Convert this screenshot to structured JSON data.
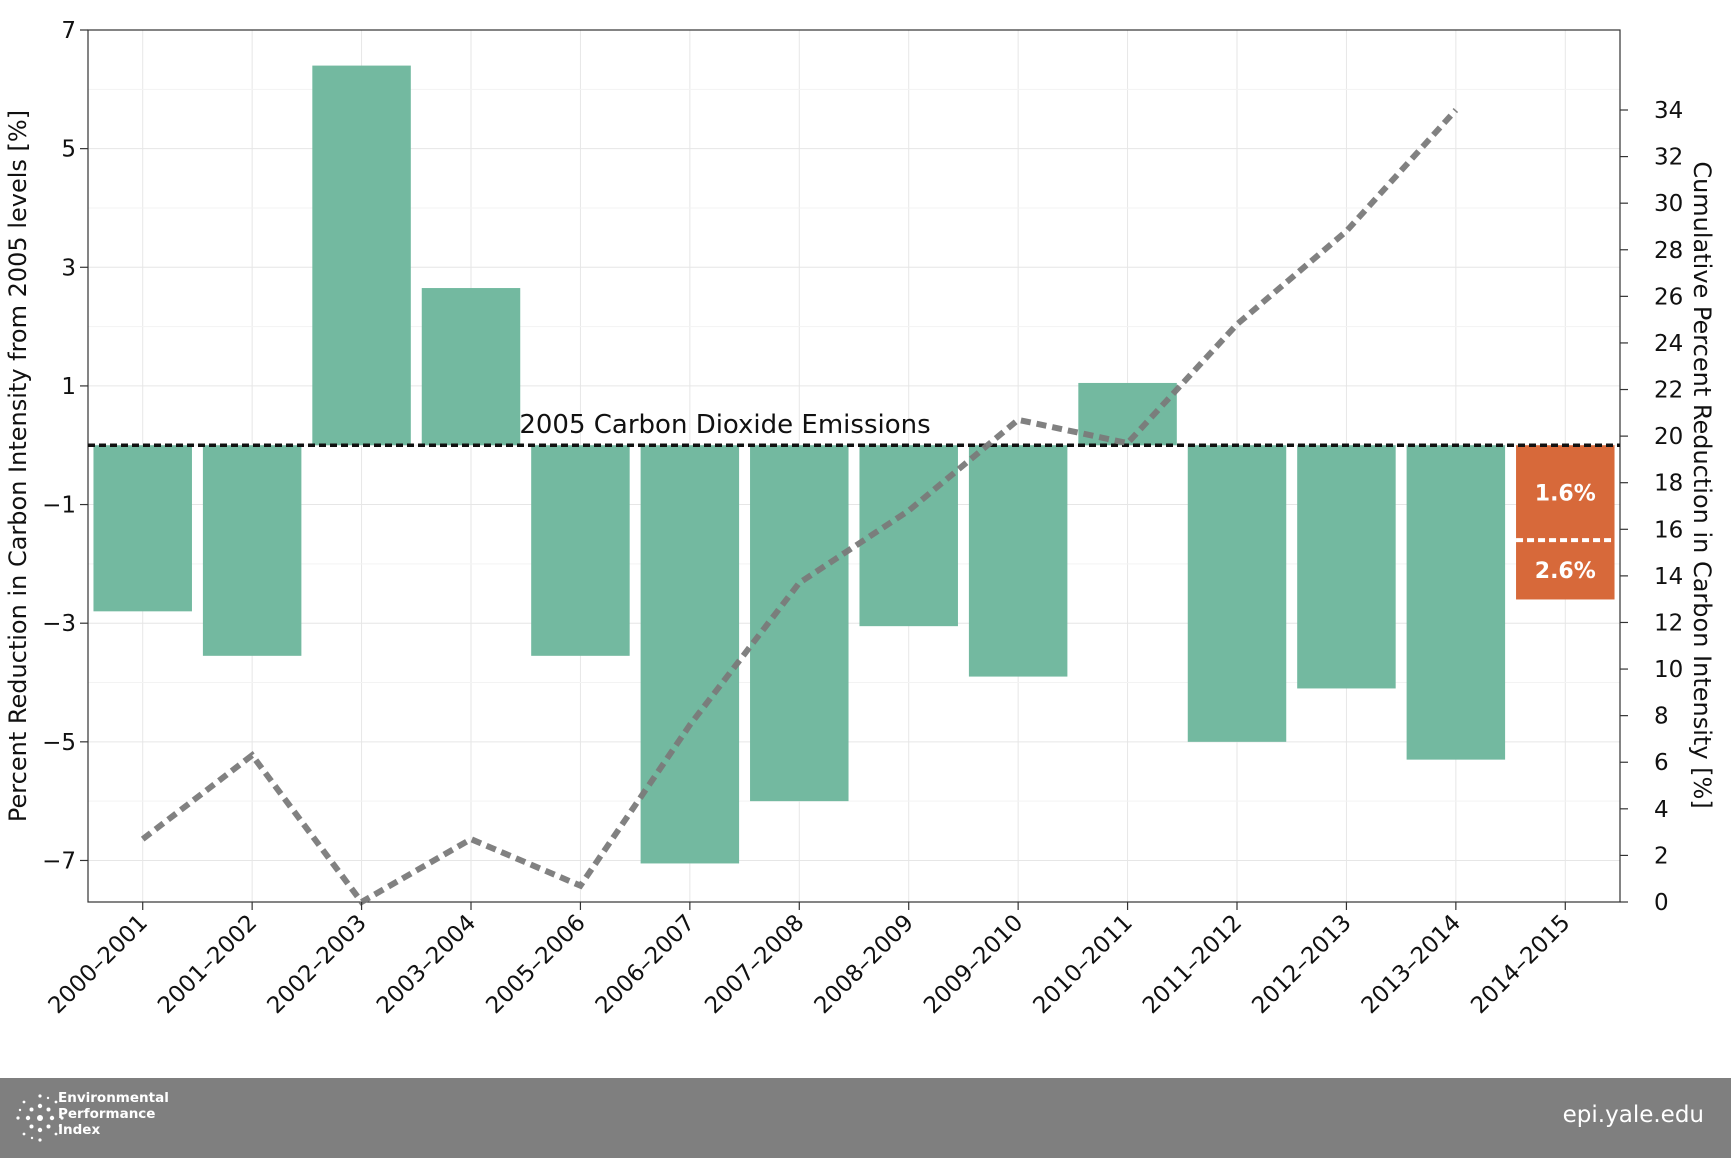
{
  "chart_data": {
    "type": "bar",
    "categories": [
      "2000–2001",
      "2001–2002",
      "2002–2003",
      "2003–2004",
      "2005–2006",
      "2006–2007",
      "2007–2008",
      "2008–2009",
      "2009–2010",
      "2010–2011",
      "2011–2012",
      "2012–2013",
      "2013–2014",
      "2014–2015"
    ],
    "series": [
      {
        "values": [
          -2.8,
          -3.55,
          6.4,
          2.65,
          -3.55,
          -7.05,
          -6.0,
          -3.05,
          -3.9,
          1.05,
          -5.0,
          -4.1,
          -5.3,
          null
        ],
        "color": "#73b9a0"
      },
      {
        "values": [
          2.7,
          6.3,
          0.0,
          2.7,
          0.7,
          7.6,
          13.7,
          16.8,
          20.7,
          19.7,
          24.8,
          28.8,
          34.0,
          null
        ],
        "color": "#7a7a7a",
        "line": "dashed",
        "axis": "right"
      }
    ],
    "projection": {
      "category": "2014–2015",
      "range": [
        0,
        -2.6
      ],
      "marker": -1.6,
      "labels": [
        "1.6%",
        "2.6%"
      ],
      "color": "#d7693a"
    },
    "reference_line": {
      "value": 0,
      "label": "2005 Carbon Dioxide Emissions"
    },
    "ylabel": "Percent Reduction in Carbon Intensity from 2005 levels [%]",
    "y2label": "Cumulative Percent Reduction in Carbon Intensity [%]",
    "ylim": [
      -7.7,
      7
    ],
    "yticks": [
      7,
      5,
      3,
      1,
      -1,
      -3,
      -5,
      -7
    ],
    "ytick_labels": [
      "7",
      "5",
      "3",
      "1",
      "−1",
      "−3",
      "−5",
      "−7"
    ],
    "y2lim": [
      0,
      34
    ],
    "y2ticks": [
      0,
      2,
      4,
      6,
      8,
      10,
      12,
      14,
      16,
      18,
      20,
      22,
      24,
      26,
      28,
      30,
      32,
      34
    ],
    "grid": true
  },
  "footer": {
    "brand_lines": [
      "Environmental",
      "Performance",
      "Index"
    ],
    "url": "epi.yale.edu"
  }
}
